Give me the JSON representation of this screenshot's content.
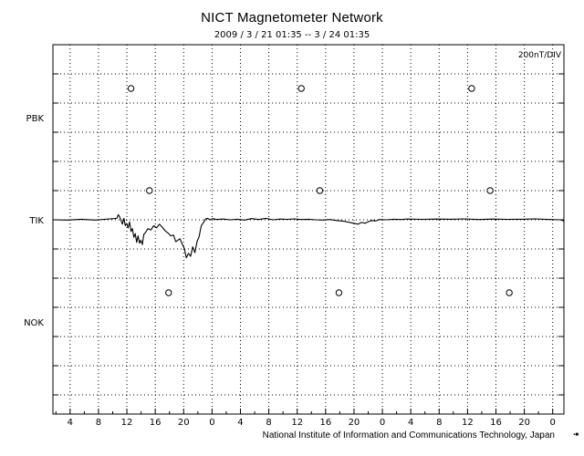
{
  "header": {
    "title": "NICT Magnetometer Network",
    "subtitle": "2009 / 3 / 21   01:35 --  3 / 24   01:35"
  },
  "footer": {
    "credit": "National Institute of Information and Communications Technology, Japan",
    "corner_mark": "▪■"
  },
  "chart_data": {
    "type": "line",
    "scale_label": "200nT/DIV",
    "xlim_hours": [
      0,
      72
    ],
    "x_ticks": [
      {
        "h": 2.42,
        "label": "4"
      },
      {
        "h": 6.42,
        "label": "8"
      },
      {
        "h": 10.42,
        "label": "12"
      },
      {
        "h": 14.42,
        "label": "16"
      },
      {
        "h": 18.42,
        "label": "20"
      },
      {
        "h": 22.42,
        "label": "0"
      },
      {
        "h": 26.42,
        "label": "4"
      },
      {
        "h": 30.42,
        "label": "8"
      },
      {
        "h": 34.42,
        "label": "12"
      },
      {
        "h": 38.42,
        "label": "16"
      },
      {
        "h": 42.42,
        "label": "20"
      },
      {
        "h": 46.42,
        "label": "0"
      },
      {
        "h": 50.42,
        "label": "4"
      },
      {
        "h": 54.42,
        "label": "8"
      },
      {
        "h": 58.42,
        "label": "12"
      },
      {
        "h": 62.42,
        "label": "16"
      },
      {
        "h": 66.42,
        "label": "20"
      },
      {
        "h": 70.42,
        "label": "0"
      }
    ],
    "stations": [
      {
        "name": "PBK",
        "level_div": 3.5,
        "midnight_markers_h": [
          11.0,
          35.0,
          59.0
        ]
      },
      {
        "name": "TIK",
        "level_div": 0.0,
        "midnight_markers_h": [
          13.6,
          37.6,
          61.6
        ]
      },
      {
        "name": "NOK",
        "level_div": -3.5,
        "midnight_markers_h": [
          16.3,
          40.3,
          64.3
        ]
      }
    ],
    "series": [
      {
        "station": "TIK",
        "unit": "nT",
        "x": [
          0,
          2,
          4,
          6,
          8,
          9,
          9.2,
          9.4,
          9.6,
          9.8,
          10.0,
          10.2,
          10.4,
          10.6,
          10.8,
          11.0,
          11.2,
          11.4,
          11.6,
          11.8,
          12.0,
          12.2,
          12.4,
          12.6,
          12.8,
          13.0,
          13.4,
          13.8,
          14.2,
          14.6,
          15.0,
          15.4,
          15.8,
          16.2,
          16.6,
          17.0,
          17.3,
          17.6,
          17.9,
          18.2,
          18.5,
          18.8,
          19.1,
          19.4,
          19.7,
          20.0,
          20.3,
          20.6,
          20.9,
          21.2,
          21.5,
          21.8,
          22.1,
          22.5,
          23.0,
          24,
          25,
          26,
          27,
          28,
          29,
          30,
          31,
          32,
          33,
          34,
          35,
          36,
          37,
          38,
          39,
          40,
          41,
          42,
          43,
          43.5,
          44,
          44.5,
          45,
          45.5,
          46,
          47,
          48,
          49,
          50,
          52,
          54,
          56,
          58,
          60,
          62,
          64,
          66,
          68,
          70,
          71.5,
          72
        ],
        "values": [
          0,
          -2,
          4,
          -2,
          6,
          10,
          35,
          20,
          -5,
          -30,
          10,
          -40,
          -25,
          -55,
          -15,
          -80,
          -60,
          -120,
          -95,
          -155,
          -110,
          -160,
          -140,
          -170,
          -100,
          -90,
          -60,
          -70,
          -40,
          -55,
          -30,
          -50,
          -75,
          -90,
          -110,
          -105,
          -150,
          -140,
          -130,
          -165,
          -195,
          -260,
          -230,
          -250,
          -185,
          -225,
          -150,
          -115,
          -40,
          -20,
          5,
          10,
          0,
          8,
          2,
          5,
          0,
          4,
          -2,
          8,
          2,
          10,
          0,
          5,
          3,
          6,
          2,
          4,
          0,
          -2,
          2,
          -5,
          -10,
          -20,
          -30,
          -18,
          -24,
          -12,
          -5,
          -8,
          2,
          0,
          4,
          2,
          5,
          3,
          5,
          4,
          6,
          2,
          5,
          3,
          4,
          6,
          2,
          0,
          -8
        ]
      }
    ],
    "grid": true
  }
}
